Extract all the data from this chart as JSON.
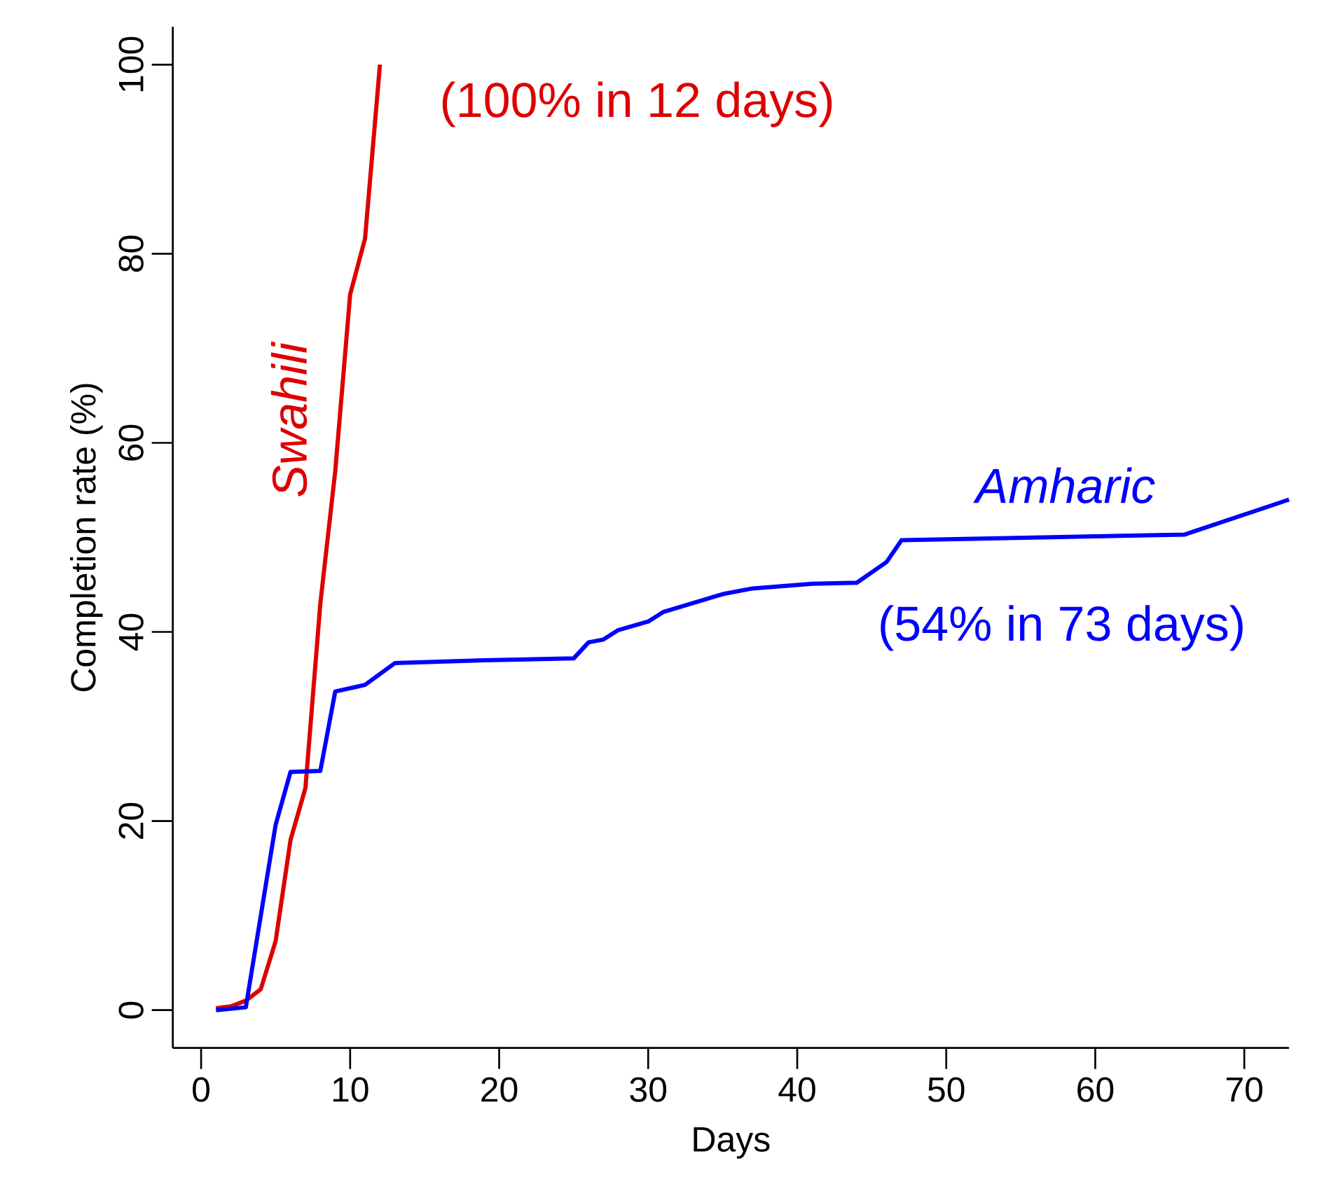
{
  "chart_data": {
    "type": "line",
    "xlabel": "Days",
    "ylabel": "Completion rate (%)",
    "xlim": [
      -1.9,
      73
    ],
    "ylim": [
      -4,
      104
    ],
    "xticks": [
      0,
      10,
      20,
      30,
      40,
      50,
      60,
      70
    ],
    "yticks": [
      0,
      20,
      40,
      60,
      80,
      100
    ],
    "grid": false,
    "legend": false,
    "marker": "none",
    "line_style": "solid",
    "series": [
      {
        "name": "Swahili",
        "color": "#dd0000",
        "x": [
          1,
          2,
          3,
          4,
          5,
          6,
          7,
          8,
          9,
          10,
          11,
          12
        ],
        "values": [
          0.2,
          0.4,
          1.0,
          2.2,
          7.3,
          18,
          23.5,
          43,
          57,
          75.7,
          81.6,
          100
        ]
      },
      {
        "name": "Amharic",
        "color": "#0000ff",
        "x": [
          1,
          3,
          5,
          6,
          8,
          9,
          11,
          13,
          19,
          25,
          26,
          27,
          28,
          30,
          31,
          35,
          37,
          41,
          44,
          46,
          47,
          66,
          73
        ],
        "values": [
          0,
          0.3,
          19.6,
          25.2,
          25.3,
          33.7,
          34.4,
          36.7,
          37.0,
          37.2,
          38.9,
          39.2,
          40.2,
          41.1,
          42.1,
          44.0,
          44.6,
          45.1,
          45.2,
          47.4,
          49.7,
          50.3,
          54
        ]
      }
    ],
    "annotations": [
      {
        "text": "(100% in 12 days)",
        "x": 12,
        "y": 100
      },
      {
        "text": "(54% in 73 days)",
        "x": 73,
        "y": 54
      }
    ]
  }
}
